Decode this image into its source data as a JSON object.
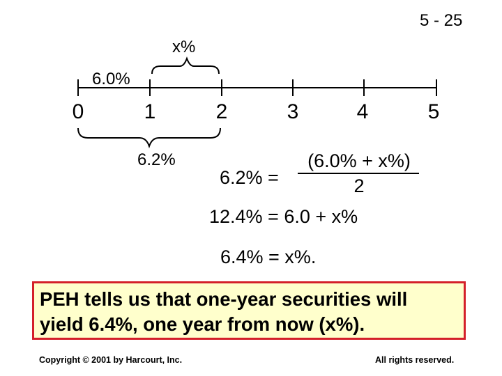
{
  "slide_number": "5 - 25",
  "timeline": {
    "ticks": [
      "0",
      "1",
      "2",
      "3",
      "4",
      "5"
    ],
    "upper_brace_label": "x%",
    "short_rate_label": "6.0%",
    "lower_brace_label": "6.2%"
  },
  "equations": {
    "lhs": "6.2% =",
    "numerator": "(6.0% + x%)",
    "denominator": "2",
    "line2": "12.4% = 6.0 + x%",
    "line3": "6.4% = x%."
  },
  "callout": {
    "line1": "PEH tells us that one-year securities will",
    "line2": "yield 6.4%, one year from now (x%)."
  },
  "footer": {
    "copyright": "Copyright © 2001 by Harcourt, Inc.",
    "rights": "All rights reserved."
  },
  "colors": {
    "callout_background": "#ffffcc",
    "callout_border": "#d4202a"
  }
}
